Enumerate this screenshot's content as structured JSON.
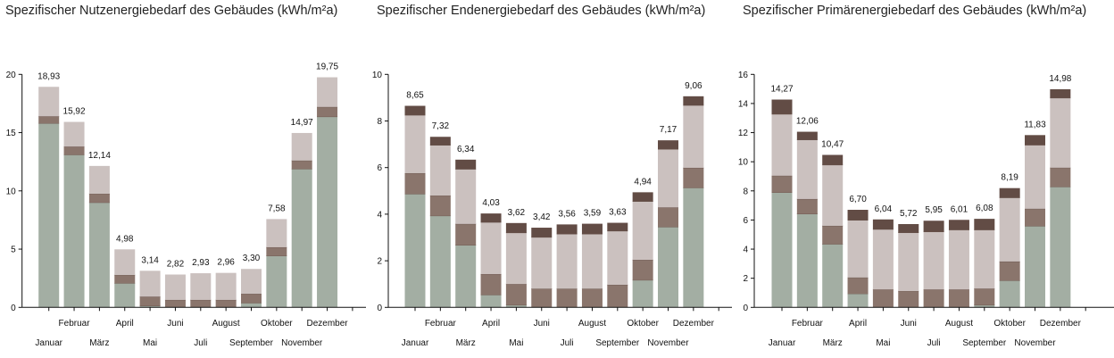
{
  "colors": {
    "segment_1": "#a3aea3",
    "segment_2": "#8a756c",
    "segment_3": "#cbc1bf",
    "segment_4": "#624c45"
  },
  "chart_data": [
    {
      "type": "bar",
      "stacked": true,
      "title": "Spezifischer Nutzenergiebedarf des Gebäudes (kWh/m²a)",
      "categories": [
        "Januar",
        "Februar",
        "März",
        "April",
        "Mai",
        "Juni",
        "Juli",
        "August",
        "September",
        "Oktober",
        "November",
        "Dezember"
      ],
      "ylim": [
        0,
        20
      ],
      "yticks": [
        0,
        5,
        10,
        15,
        20
      ],
      "totals_labels": [
        "18,93",
        "15,92",
        "12,14",
        "4,98",
        "3,14",
        "2,82",
        "2,93",
        "2,96",
        "3,30",
        "7,58",
        "14,97",
        "19,75"
      ],
      "series": [
        {
          "values": [
            15.8,
            13.1,
            9.0,
            2.07,
            0.13,
            0,
            0,
            0,
            0.38,
            4.42,
            11.88,
            16.37
          ]
        },
        {
          "values": [
            0.6,
            0.7,
            0.75,
            0.71,
            0.79,
            0.64,
            0.64,
            0.64,
            0.79,
            0.74,
            0.72,
            0.83
          ]
        },
        {
          "values": [
            2.53,
            2.12,
            2.39,
            2.2,
            2.22,
            2.18,
            2.29,
            2.32,
            2.13,
            2.42,
            2.37,
            2.55
          ]
        }
      ]
    },
    {
      "type": "bar",
      "stacked": true,
      "title": "Spezifischer Endenergiebedarf des Gebäudes (kWh/m²a)",
      "categories": [
        "Januar",
        "Februar",
        "März",
        "April",
        "Mai",
        "Juni",
        "Juli",
        "August",
        "September",
        "Oktober",
        "November",
        "Dezember"
      ],
      "ylim": [
        0,
        10
      ],
      "yticks": [
        0,
        2,
        4,
        6,
        8,
        10
      ],
      "totals_labels": [
        "8,65",
        "7,32",
        "6,34",
        "4,03",
        "3,62",
        "3,42",
        "3,56",
        "3,59",
        "3,63",
        "4,94",
        "7,17",
        "9,06"
      ],
      "series": [
        {
          "values": [
            4.87,
            3.93,
            2.67,
            0.54,
            0.1,
            0,
            0,
            0,
            0,
            1.17,
            3.45,
            5.13
          ]
        },
        {
          "values": [
            0.89,
            0.87,
            0.91,
            0.89,
            0.9,
            0.8,
            0.8,
            0.8,
            0.97,
            0.87,
            0.84,
            0.86
          ]
        },
        {
          "values": [
            2.49,
            2.16,
            2.35,
            2.22,
            2.2,
            2.21,
            2.35,
            2.35,
            2.31,
            2.51,
            2.5,
            2.68
          ]
        },
        {
          "values": [
            0.4,
            0.36,
            0.41,
            0.38,
            0.42,
            0.41,
            0.41,
            0.44,
            0.35,
            0.39,
            0.38,
            0.39
          ]
        }
      ]
    },
    {
      "type": "bar",
      "stacked": true,
      "title": "Spezifischer Primärenergiebedarf des Gebäudes (kWh/m²a)",
      "categories": [
        "Januar",
        "Februar",
        "März",
        "April",
        "Mai",
        "Juni",
        "Juli",
        "August",
        "September",
        "Oktober",
        "November",
        "Dezember"
      ],
      "ylim": [
        0,
        16
      ],
      "yticks": [
        0,
        2,
        4,
        6,
        8,
        10,
        12,
        14,
        16
      ],
      "totals_labels": [
        "14,27",
        "12,06",
        "10,47",
        "6,70",
        "6,04",
        "5,72",
        "5,95",
        "6,01",
        "6,08",
        "8,19",
        "11,83",
        "14,98"
      ],
      "series": [
        {
          "values": [
            7.89,
            6.42,
            4.34,
            0.94,
            0,
            0,
            0,
            0,
            0.16,
            1.84,
            5.58,
            8.28
          ]
        },
        {
          "values": [
            1.15,
            1.02,
            1.26,
            1.11,
            1.23,
            1.12,
            1.23,
            1.23,
            1.13,
            1.31,
            1.19,
            1.31
          ]
        },
        {
          "values": [
            4.23,
            4.07,
            4.18,
            3.94,
            4.13,
            4.01,
            3.96,
            4.09,
            4.03,
            4.38,
            4.38,
            4.79
          ]
        },
        {
          "values": [
            1.0,
            0.55,
            0.69,
            0.71,
            0.68,
            0.59,
            0.76,
            0.69,
            0.76,
            0.66,
            0.68,
            0.6
          ]
        }
      ]
    }
  ]
}
